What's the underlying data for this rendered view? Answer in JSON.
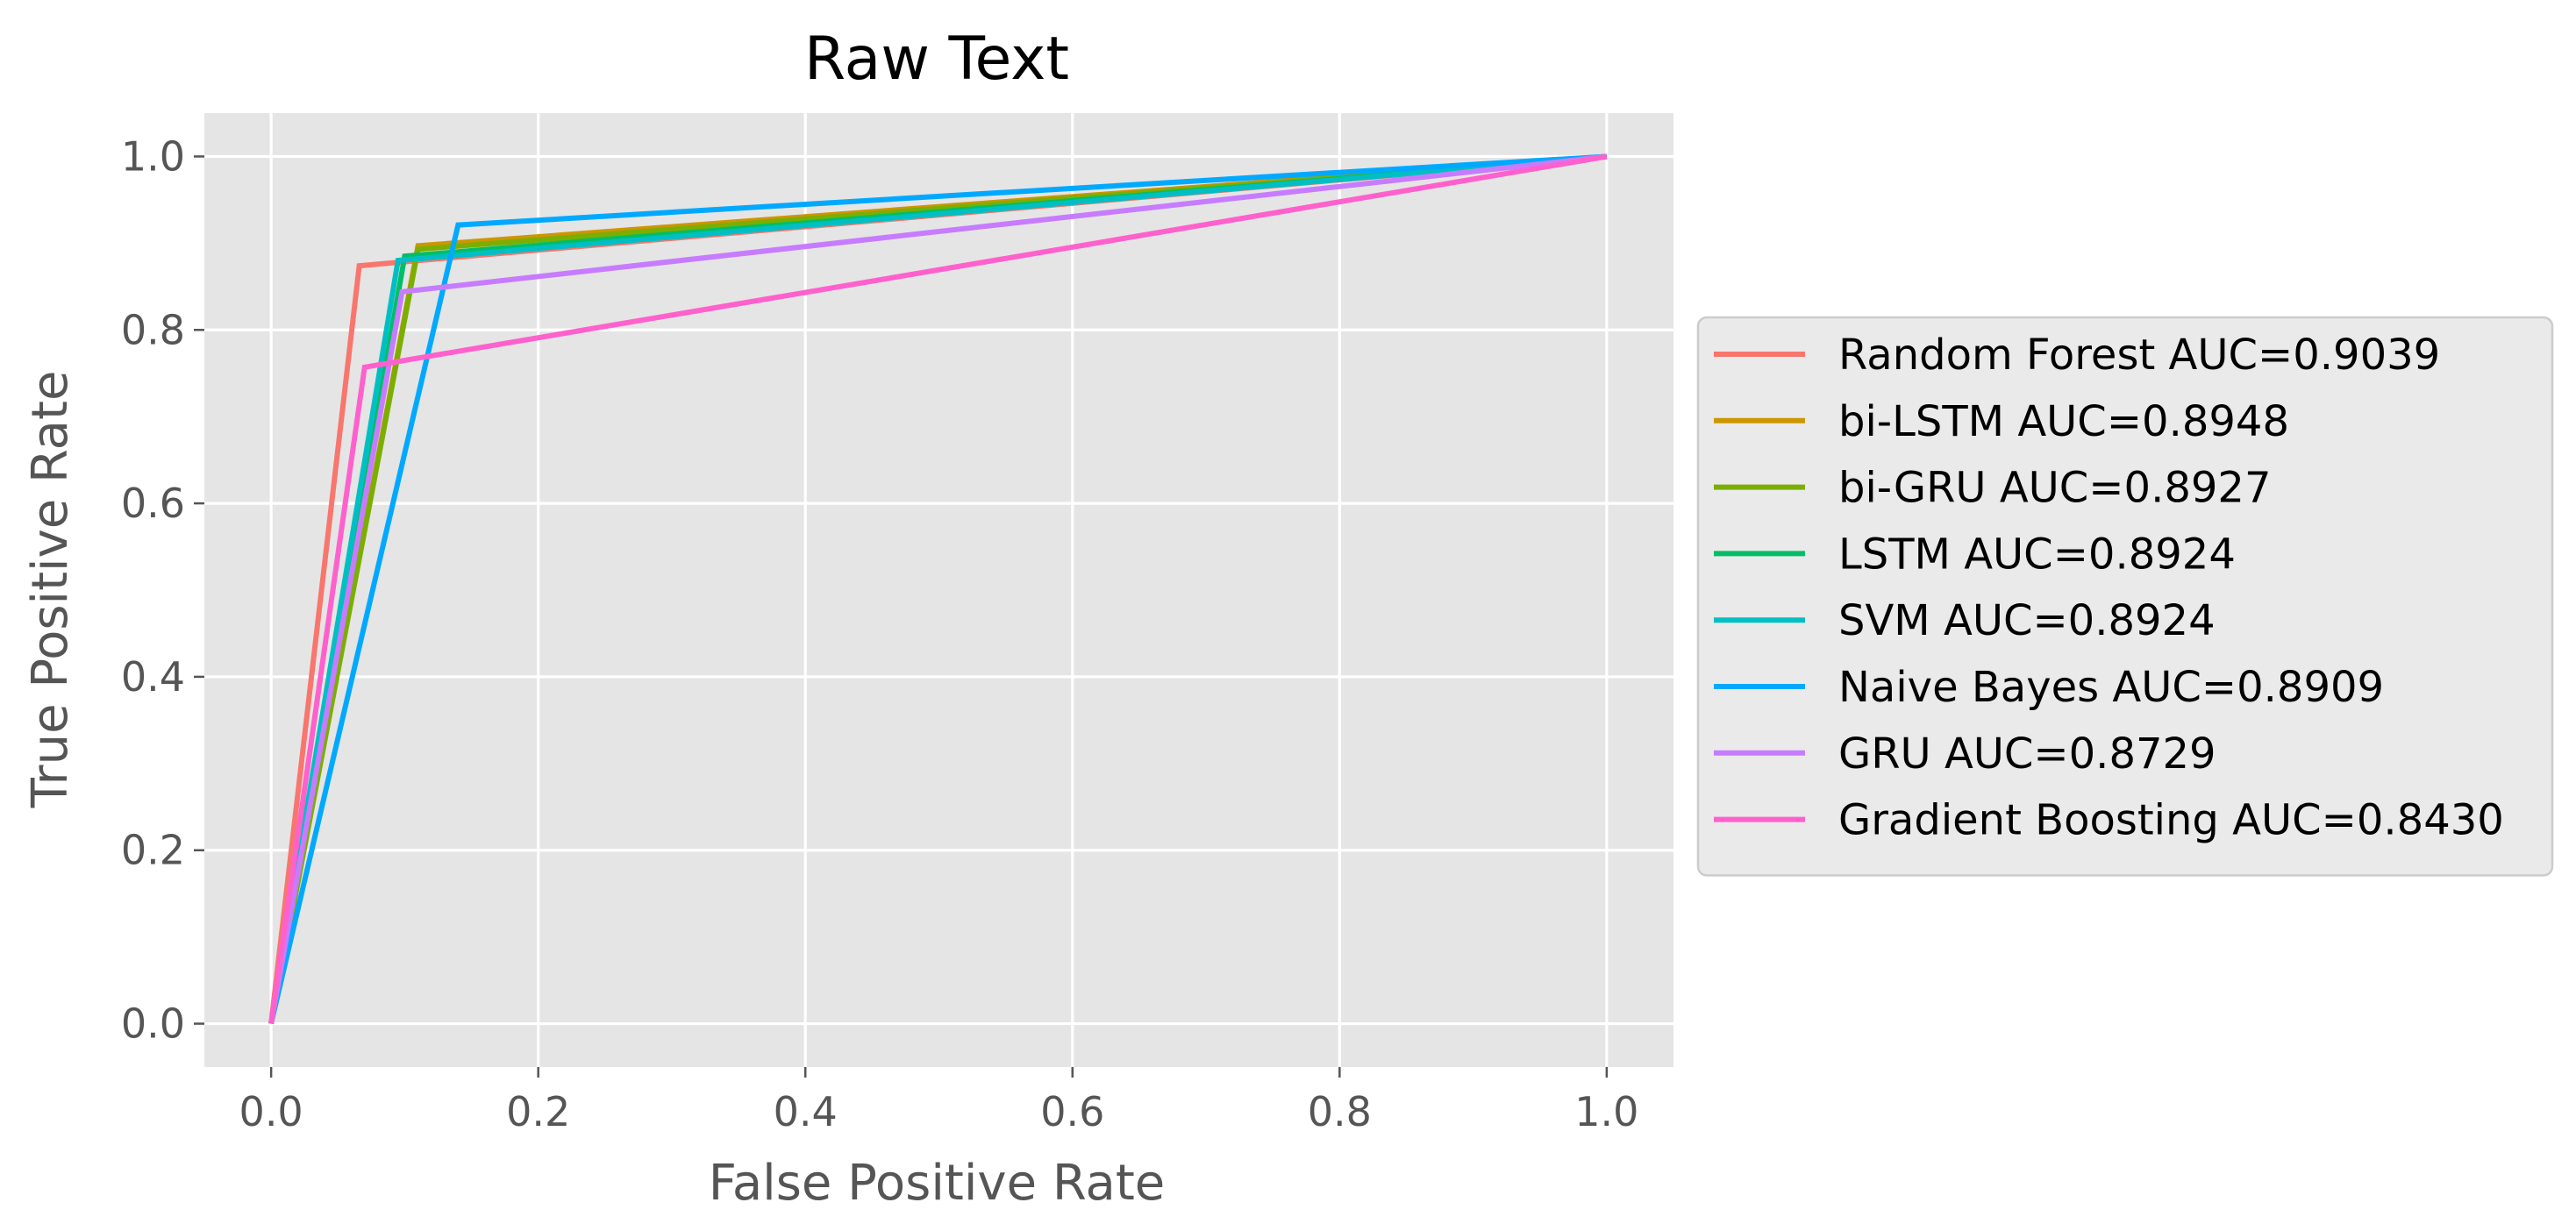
{
  "chart_data": {
    "type": "line",
    "title": "Raw Text",
    "xlabel": "False Positive Rate",
    "ylabel": "True Positive Rate",
    "xlim": [
      -0.05,
      1.05
    ],
    "ylim": [
      -0.05,
      1.05
    ],
    "xticks": [
      0.0,
      0.2,
      0.4,
      0.6,
      0.8,
      1.0
    ],
    "yticks": [
      0.0,
      0.2,
      0.4,
      0.6,
      0.8,
      1.0
    ],
    "xtick_labels": [
      "0.0",
      "0.2",
      "0.4",
      "0.6",
      "0.8",
      "1.0"
    ],
    "ytick_labels": [
      "0.0",
      "0.2",
      "0.4",
      "0.6",
      "0.8",
      "1.0"
    ],
    "grid": true,
    "legend_position": "center-right-outside",
    "background": "#e5e5e5",
    "series": [
      {
        "name": "Random Forest AUC=0.9039",
        "color": "#f8766d",
        "x": [
          0.0,
          0.066,
          1.0
        ],
        "y": [
          0.0,
          0.874,
          1.0
        ]
      },
      {
        "name": "bi-LSTM AUC=0.8948",
        "color": "#cd9600",
        "x": [
          0.0,
          0.11,
          1.0
        ],
        "y": [
          0.0,
          0.897,
          1.0
        ]
      },
      {
        "name": "bi-GRU AUC=0.8927",
        "color": "#7cae00",
        "x": [
          0.0,
          0.11,
          1.0
        ],
        "y": [
          0.0,
          0.893,
          1.0
        ]
      },
      {
        "name": "LSTM AUC=0.8924",
        "color": "#00be67",
        "x": [
          0.0,
          0.1,
          1.0
        ],
        "y": [
          0.0,
          0.885,
          1.0
        ]
      },
      {
        "name": "SVM AUC=0.8924",
        "color": "#00bfc4",
        "x": [
          0.0,
          0.095,
          1.0
        ],
        "y": [
          0.0,
          0.88,
          1.0
        ]
      },
      {
        "name": "Naive Bayes AUC=0.8909",
        "color": "#00a9ff",
        "x": [
          0.0,
          0.14,
          1.0
        ],
        "y": [
          0.0,
          0.921,
          1.0
        ]
      },
      {
        "name": "GRU AUC=0.8729",
        "color": "#c77cff",
        "x": [
          0.0,
          0.098,
          1.0
        ],
        "y": [
          0.0,
          0.844,
          1.0
        ]
      },
      {
        "name": "Gradient Boosting AUC=0.8430",
        "color": "#ff61cc",
        "x": [
          0.0,
          0.07,
          1.0
        ],
        "y": [
          0.0,
          0.757,
          1.0
        ]
      }
    ]
  }
}
